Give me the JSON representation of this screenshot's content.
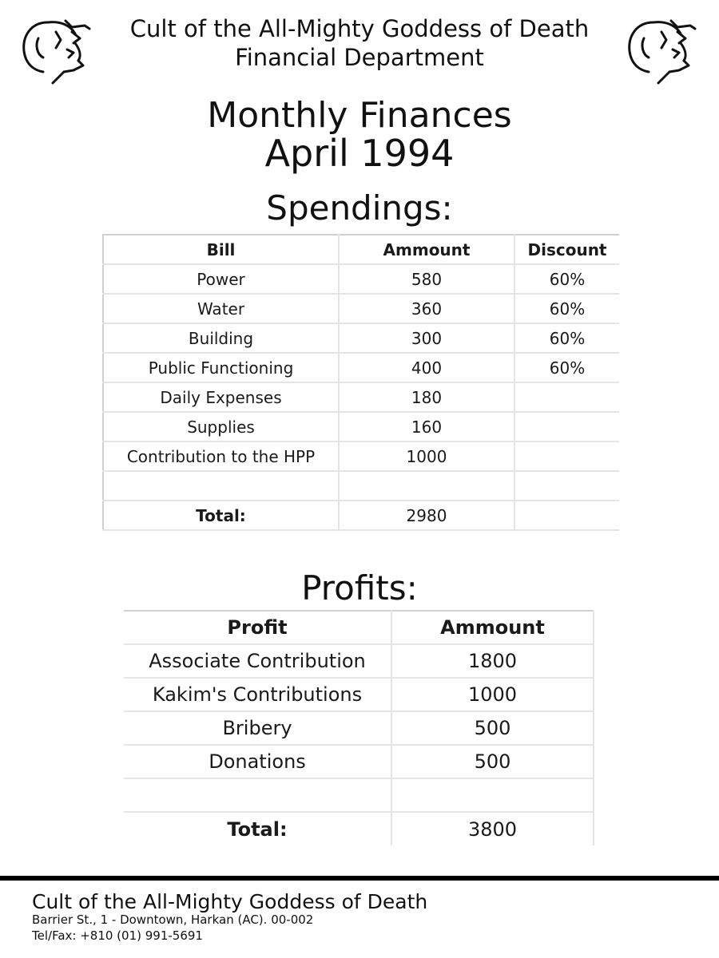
{
  "header": {
    "org_name": "Cult of the All-Mighty Goddess of Death",
    "department": "Financial Department",
    "logo": "skull-head-sketch-icon"
  },
  "title": {
    "line1": "Monthly Finances",
    "line2": "April 1994"
  },
  "spendings": {
    "section_title": "Spendings:",
    "columns": [
      "Bill",
      "Ammount",
      "Discount"
    ],
    "rows": [
      [
        "Power",
        "580",
        "60%"
      ],
      [
        "Water",
        "360",
        "60%"
      ],
      [
        "Building",
        "300",
        "60%"
      ],
      [
        "Public Functioning",
        "400",
        "60%"
      ],
      [
        "Daily Expenses",
        "180",
        ""
      ],
      [
        "Supplies",
        "160",
        ""
      ],
      [
        "Contribution to the HPP",
        "1000",
        ""
      ],
      [
        "",
        "",
        ""
      ]
    ],
    "total_label": "Total:",
    "total_value": "2980"
  },
  "profits": {
    "section_title": "Profits:",
    "columns": [
      "Profit",
      "Ammount"
    ],
    "rows": [
      [
        "Associate Contribution",
        "1800"
      ],
      [
        "Kakim's Contributions",
        "1000"
      ],
      [
        "Bribery",
        "500"
      ],
      [
        "Donations",
        "500"
      ],
      [
        "",
        ""
      ]
    ],
    "total_label": "Total:",
    "total_value": "3800"
  },
  "footer": {
    "org_name": "Cult of the All-Mighty Goddess of Death",
    "address": "Barrier St., 1 - Downtown, Harkan (AC). 00-002",
    "tel_fax": "Tel/Fax: +810 (01) 991-5691"
  }
}
